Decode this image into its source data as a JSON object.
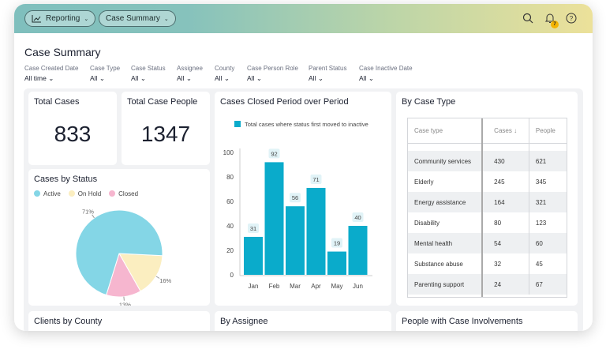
{
  "header": {
    "nav": [
      {
        "label": "Reporting",
        "icon": "chart-line-icon"
      },
      {
        "label": "Case Summary"
      }
    ],
    "notification_count": "7",
    "icons": [
      "search-icon",
      "bell-icon",
      "help-icon"
    ]
  },
  "page_title": "Case Summary",
  "filters": [
    {
      "label": "Case Created Date",
      "value": "All time"
    },
    {
      "label": "Case Type",
      "value": "All"
    },
    {
      "label": "Case Status",
      "value": "All"
    },
    {
      "label": "Assignee",
      "value": "All"
    },
    {
      "label": "County",
      "value": "All"
    },
    {
      "label": "Case Person Role",
      "value": "All"
    },
    {
      "label": "Parent Status",
      "value": "All"
    },
    {
      "label": "Case Inactive Date",
      "value": "All"
    }
  ],
  "kpis": {
    "total_cases": {
      "label": "Total Cases",
      "value": "833"
    },
    "total_people": {
      "label": "Total Case People",
      "value": "1347"
    }
  },
  "status": {
    "title": "Cases by Status",
    "legend": [
      "Active",
      "On Hold",
      "Closed"
    ],
    "labels": [
      "71%",
      "16%",
      "13%"
    ]
  },
  "chart_data": [
    {
      "type": "bar",
      "title": "Cases Closed Period over Period",
      "categories": [
        "Jan",
        "Feb",
        "Mar",
        "Apr",
        "May",
        "Jun"
      ],
      "series": [
        {
          "name": "Total cases where status first moved to inactive",
          "values": [
            31,
            92,
            56,
            71,
            19,
            40
          ],
          "color": "#0aabcb"
        }
      ],
      "ylim": [
        0,
        100
      ],
      "yticks": [
        "0",
        "20",
        "40",
        "60",
        "80",
        "100"
      ],
      "legend": "top"
    },
    {
      "type": "pie",
      "title": "Cases by Status",
      "categories": [
        "Active",
        "On Hold",
        "Closed"
      ],
      "values": [
        71,
        16,
        13
      ],
      "colors": [
        "#84d6e6",
        "#fbeec0",
        "#f6b6cf"
      ],
      "legend": "top-left"
    }
  ],
  "case_type": {
    "title": "By Case Type",
    "columns": [
      "Case type",
      "Cases",
      "People"
    ],
    "rows": [
      [
        "Community services",
        "430",
        "621"
      ],
      [
        "Elderly",
        "245",
        "345"
      ],
      [
        "Energy assistance",
        "164",
        "321"
      ],
      [
        "Disability",
        "80",
        "123"
      ],
      [
        "Mental health",
        "54",
        "60"
      ],
      [
        "Substance abuse",
        "32",
        "45"
      ],
      [
        "Parenting support",
        "24",
        "67"
      ]
    ]
  },
  "bottom": [
    "Clients by County",
    "By Assignee",
    "People with Case Involvements"
  ]
}
